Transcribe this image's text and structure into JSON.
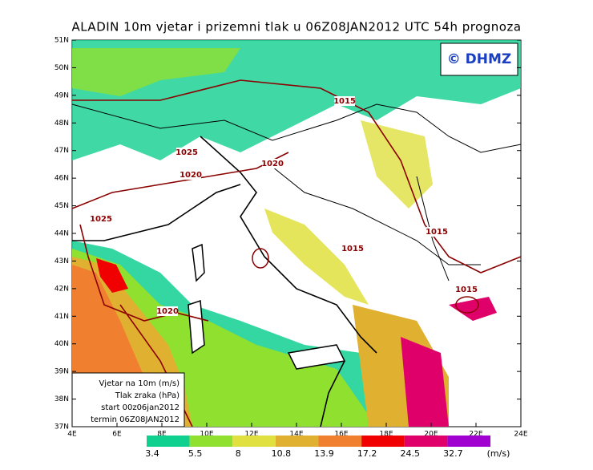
{
  "title": "ALADIN 10m vjetar i prizemni tlak u 06Z08JAN2012 UTC 54h prognoza",
  "logo": "© DHMZ",
  "lat_ticks": [
    "51N",
    "50N",
    "49N",
    "48N",
    "47N",
    "46N",
    "45N",
    "44N",
    "43N",
    "42N",
    "41N",
    "40N",
    "39N",
    "38N",
    "37N"
  ],
  "lon_ticks": [
    "4E",
    "6E",
    "8E",
    "10E",
    "12E",
    "14E",
    "16E",
    "18E",
    "20E",
    "22E",
    "24E"
  ],
  "info_box": [
    "Vjetar na 10m (m/s)",
    "Tlak zraka (hPa)",
    "start 00z06jan2012",
    "termin 06Z08JAN2012"
  ],
  "isobar_labels": [
    "1015",
    "1025",
    "1020",
    "1020",
    "1025",
    "1015",
    "1015",
    "1015",
    "1020"
  ],
  "legend": {
    "colors": [
      "#10d090",
      "#90e030",
      "#e0e040",
      "#e0b030",
      "#f08030",
      "#f00000",
      "#e0006a",
      "#a000d0"
    ],
    "labels": [
      3.4,
      5.5,
      8,
      10.8,
      13.9,
      17.2,
      24.5,
      32.7
    ],
    "unit": "(m/s)"
  }
}
